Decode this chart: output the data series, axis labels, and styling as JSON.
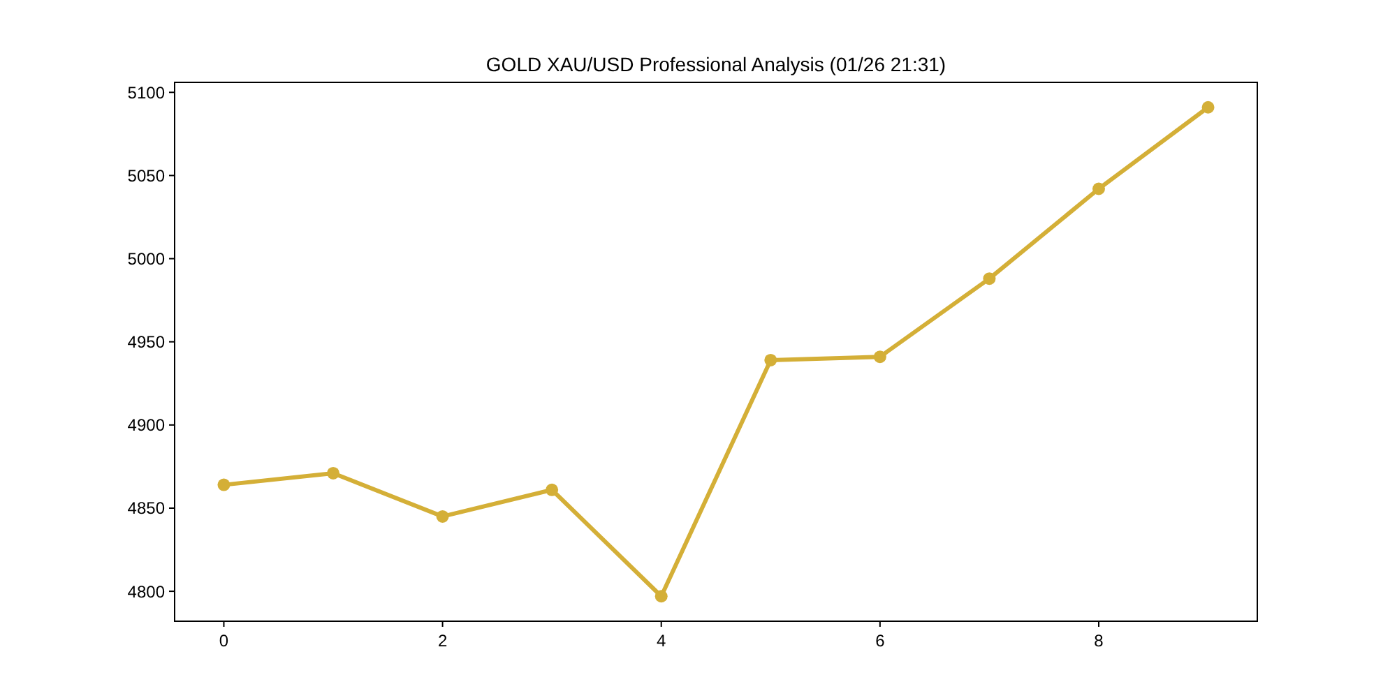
{
  "chart_data": {
    "type": "line",
    "title": "GOLD XAU/USD Professional Analysis (01/26 21:31)",
    "x": [
      0,
      1,
      2,
      3,
      4,
      5,
      6,
      7,
      8,
      9
    ],
    "series": [
      {
        "color": "#d4af37",
        "values": [
          4864,
          4871,
          4845,
          4861,
          4797,
          4939,
          4941,
          4988,
          5042,
          5091
        ]
      }
    ],
    "xlim": [
      -0.45,
      9.45
    ],
    "xticks": [
      0,
      2,
      4,
      6,
      8
    ],
    "ylim": [
      4782,
      5106
    ],
    "yticks": [
      4800,
      4850,
      4900,
      4950,
      5000,
      5050,
      5100
    ],
    "marker": "circle",
    "line_style": "solid",
    "grid": false
  }
}
